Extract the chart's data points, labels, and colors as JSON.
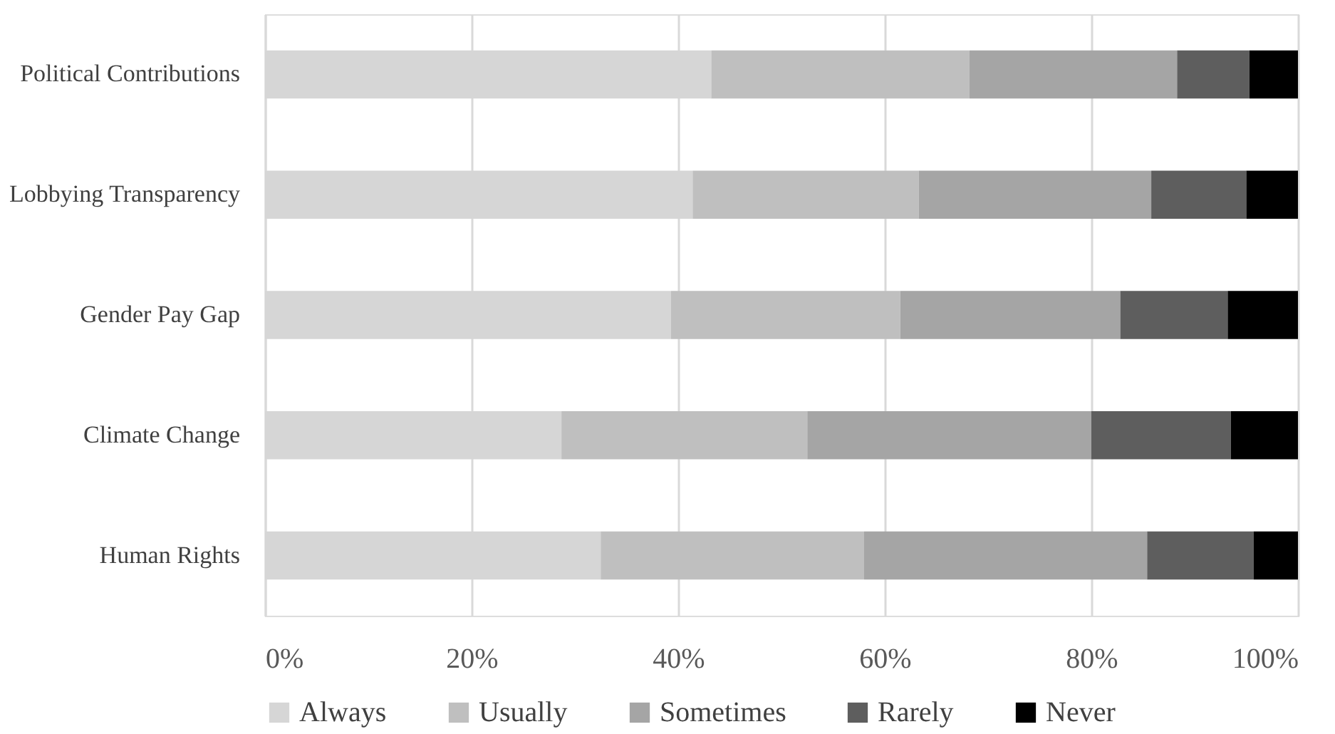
{
  "chart_data": {
    "type": "bar",
    "orientation": "horizontal",
    "stacked": true,
    "categories": [
      "Political Contributions",
      "Lobbying Transparency",
      "Gender Pay Gap",
      "Climate Change",
      "Human Rights"
    ],
    "series": [
      {
        "name": "Always",
        "color": "#d6d6d6",
        "values": [
          43.2,
          41.4,
          39.3,
          28.7,
          32.5
        ]
      },
      {
        "name": "Usually",
        "color": "#bfbfbf",
        "values": [
          25.0,
          21.9,
          22.2,
          23.8,
          25.5
        ]
      },
      {
        "name": "Sometimes",
        "color": "#a5a5a5",
        "values": [
          20.1,
          22.5,
          21.3,
          27.5,
          27.4
        ]
      },
      {
        "name": "Rarely",
        "color": "#5e5e5e",
        "values": [
          7.0,
          9.2,
          10.4,
          13.5,
          10.3
        ]
      },
      {
        "name": "Never",
        "color": "#000000",
        "values": [
          4.7,
          5.0,
          6.8,
          6.5,
          4.3
        ]
      }
    ],
    "xlim": [
      0,
      100
    ],
    "xticks": [
      {
        "value": 0,
        "label": "0%"
      },
      {
        "value": 20,
        "label": "20%"
      },
      {
        "value": 40,
        "label": "40%"
      },
      {
        "value": 60,
        "label": "60%"
      },
      {
        "value": 80,
        "label": "80%"
      },
      {
        "value": 100,
        "label": "100%"
      }
    ],
    "grid": "x",
    "legend": "bottom"
  }
}
